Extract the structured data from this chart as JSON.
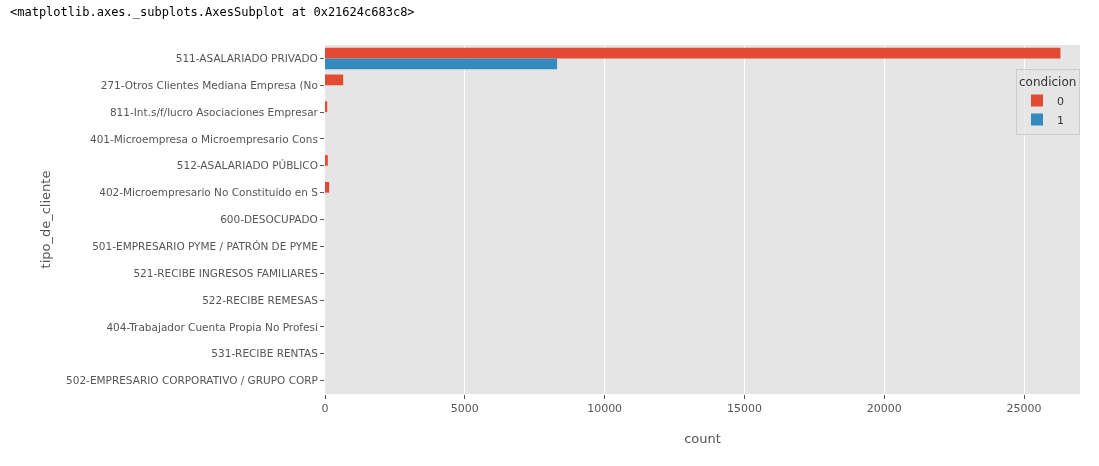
{
  "chart_data": {
    "type": "bar",
    "orientation": "horizontal",
    "xlabel": "count",
    "ylabel": "tipo_de_cliente",
    "legend_title": "condicion",
    "legend": "top right",
    "grid": "x",
    "annotations": [
      "<matplotlib.axes._subplots.AxesSubplot at 0x21624c683c8>"
    ],
    "categories": [
      "511-ASALARIADO PRIVADO",
      "271-Otros Clientes Mediana Empresa (No",
      "811-Int.s/f/lucro Asociaciones Empresar",
      "401-Microempresa o Microempresario Cons",
      "512-ASALARIADO PÚBLICO",
      "402-Microempresario No Constituido en S",
      "600-DESOCUPADO",
      "501-EMPRESARIO PYME / PATRÓN DE PYME",
      "521-RECIBE INGRESOS FAMILIARES",
      "522-RECIBE REMESAS",
      "404-Trabajador Cuenta Propia No Profesi",
      "531-RECIBE RENTAS",
      "502-EMPRESARIO CORPORATIVO / GRUPO CORP"
    ],
    "series": [
      {
        "name": "0",
        "color": "#e24a33",
        "values": [
          26300,
          650,
          80,
          0,
          100,
          150,
          0,
          0,
          0,
          0,
          0,
          0,
          0
        ]
      },
      {
        "name": "1",
        "color": "#348abd",
        "values": [
          8300,
          0,
          0,
          0,
          0,
          0,
          0,
          0,
          0,
          0,
          0,
          0,
          0
        ]
      }
    ],
    "xlim": [
      0,
      27000
    ],
    "xticks": [
      0,
      5000,
      10000,
      15000,
      20000,
      25000
    ]
  }
}
